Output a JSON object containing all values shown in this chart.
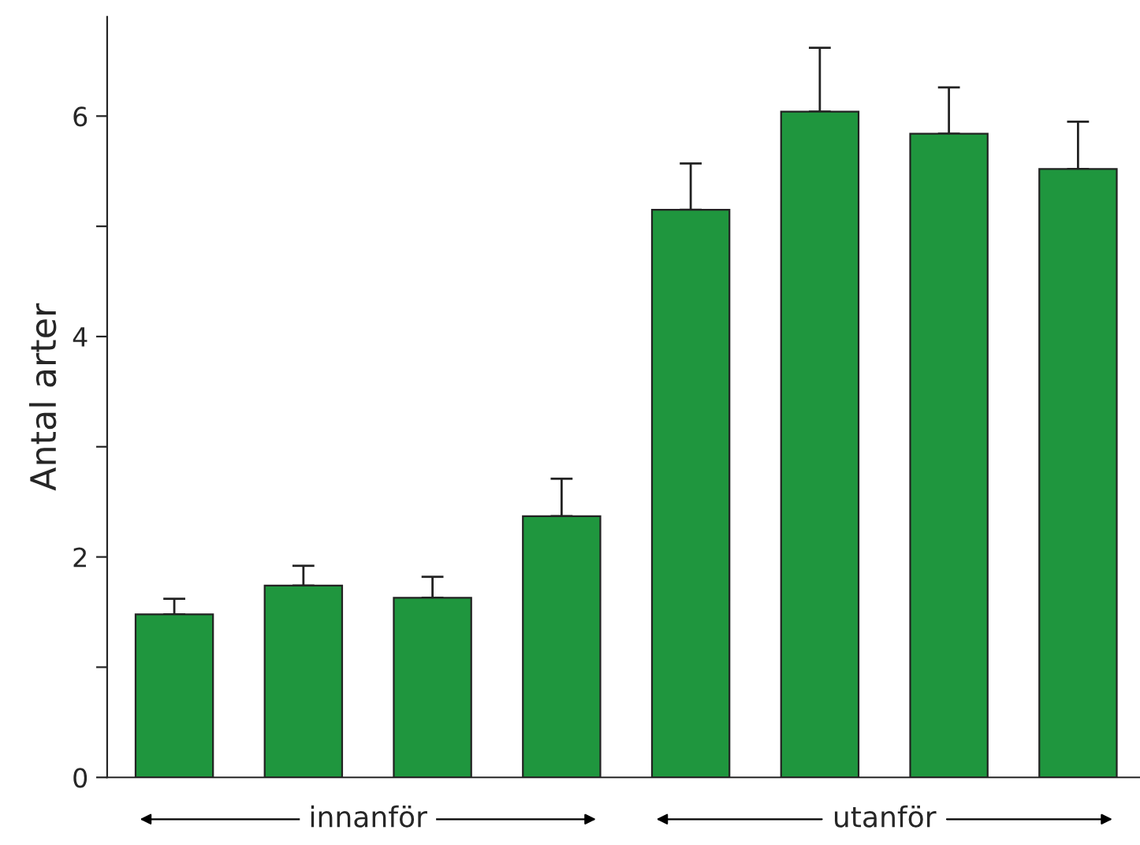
{
  "chart_data": {
    "type": "bar",
    "ylabel": "Antal arter",
    "categories": [
      null,
      null,
      null,
      null,
      null,
      null,
      null,
      null
    ],
    "values": [
      1.48,
      1.74,
      1.63,
      2.37,
      5.15,
      6.04,
      5.84,
      5.52
    ],
    "errors": [
      [
        1.48,
        1.62
      ],
      [
        1.74,
        1.92
      ],
      [
        1.63,
        1.82
      ],
      [
        2.37,
        2.71
      ],
      [
        5.15,
        5.57
      ],
      [
        6.04,
        6.62
      ],
      [
        5.84,
        6.26
      ],
      [
        5.52,
        5.95
      ]
    ],
    "color": "#1f963e",
    "ylim": [
      0,
      6.9
    ],
    "yticks": [
      0,
      {
        "value": 1,
        "label": null
      },
      2,
      {
        "value": 3,
        "label": null
      },
      4,
      {
        "value": 5,
        "label": null
      },
      6
    ],
    "annotations": [
      "innanför",
      "utanför"
    ],
    "grid": false,
    "legend": false
  }
}
